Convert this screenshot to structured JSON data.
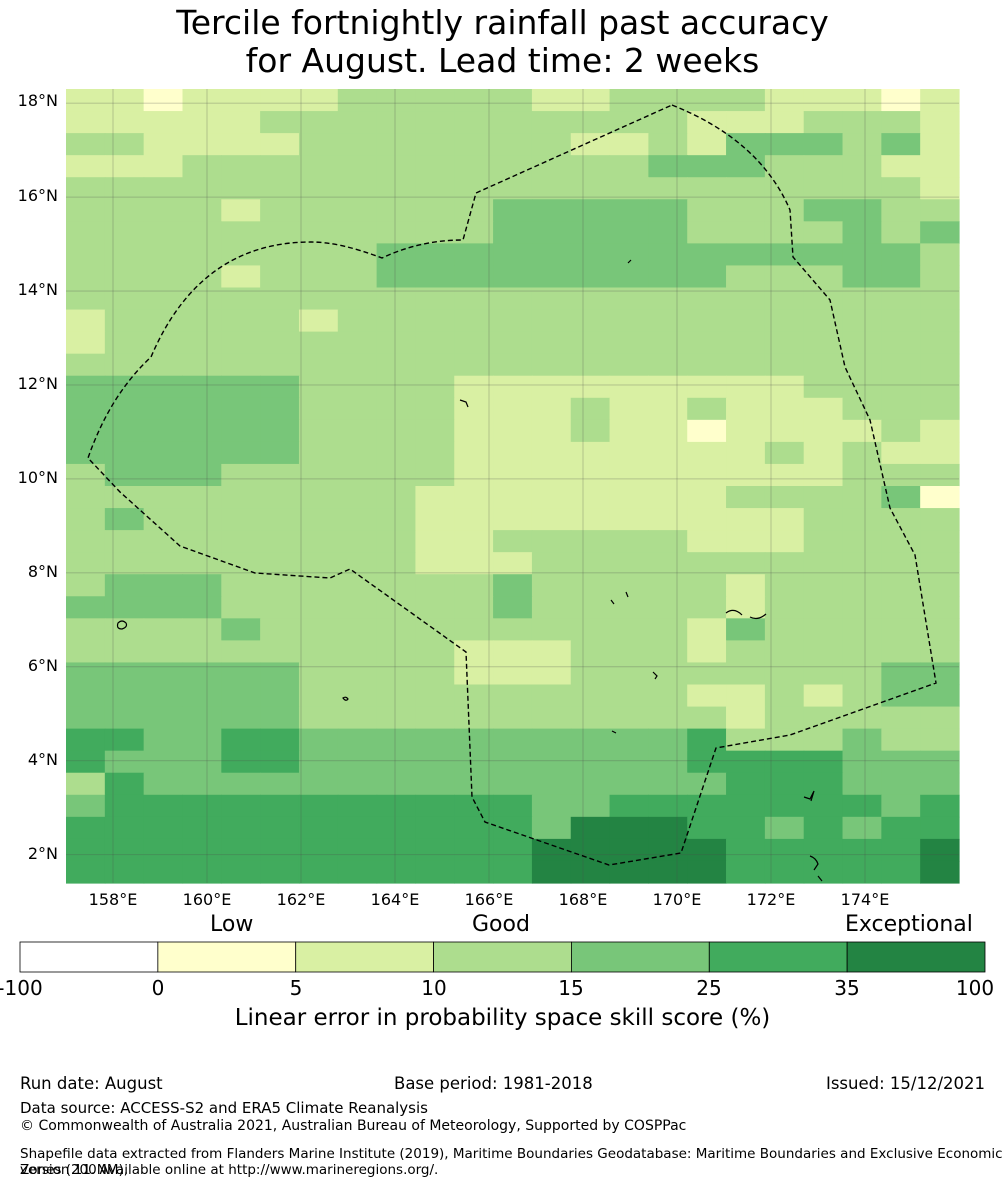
{
  "title": {
    "line1": "Tercile fortnightly rainfall past accuracy",
    "line2": "for August. Lead time: 2 weeks"
  },
  "map": {
    "lat_ticks": [
      "18°N",
      "16°N",
      "14°N",
      "12°N",
      "10°N",
      "8°N",
      "6°N",
      "4°N",
      "2°N"
    ],
    "lon_ticks": [
      "158°E",
      "160°E",
      "162°E",
      "164°E",
      "166°E",
      "168°E",
      "170°E",
      "172°E",
      "174°E"
    ],
    "lon_range": [
      157.0,
      176.0
    ],
    "lat_range": [
      1.4,
      18.3
    ],
    "grid_lines": true,
    "skill_grid_classes_rows_north_to_south": [
      "22122223333322333322212",
      "22222333333333332223332",
      "33222233333332232444342",
      "22233333333333344433322",
      "33333333333333333333332",
      "33332333333444443334433",
      "33333333333444443333434",
      "33333333444444444444443",
      "33332333444444444333443",
      "33333333333333333333333",
      "23333323333333333333333",
      "23333333333333333333333",
      "33333333333333333333333",
      "44444433332222222223333",
      "44444433332223223222333",
      "44444433332223221222232",
      "44444433332222222232322",
      "34443333332222222222333",
      "33333333322222222333341",
      "34333333322222222223333",
      "33333333322333332223333",
      "33333333322233333333333",
      "34443333333433333233333",
      "44443333333433333233333",
      "33334333333333332433333",
      "33333333332223332333333",
      "44444433332223333333344",
      "44444433333333332232344",
      "44444433333333333233333",
      "55445544444444445333433",
      "54445544444444445555444",
      "35444444444444444555444",
      "45555555555544555555545",
      "55555555555546665545455",
      "55555555555566666555556",
      "55555555555566666555556"
    ]
  },
  "colorbar": {
    "words": {
      "low": "Low",
      "good": "Good",
      "exceptional": "Exceptional"
    },
    "ticks": [
      "-100",
      "0",
      "5",
      "10",
      "15",
      "25",
      "35",
      "100"
    ],
    "colors": [
      "#ffffff",
      "#ffffcc",
      "#d9f0a3",
      "#addd8e",
      "#78c679",
      "#41ab5d",
      "#238443"
    ],
    "label": "Linear error in probability space skill score (%)"
  },
  "footer": {
    "run_date": "Run date: August",
    "base_period": "Base period: 1981-2018",
    "issued": "Issued: 15/12/2021",
    "data_source": "Data source: ACCESS-S2 and ERA5 Climate Reanalysis",
    "copyright": "© Commonwealth of Australia 2021, Australian Bureau of Meteorology, Supported by COSPPac",
    "shapefile_line1": "Shapefile data extracted from Flanders Marine Institute (2019), Maritime Boundaries Geodatabase: Maritime Boundaries and Exclusive Economic Zones (200NM),",
    "shapefile_line2": "version 11. Available online at http://www.marineregions.org/."
  }
}
